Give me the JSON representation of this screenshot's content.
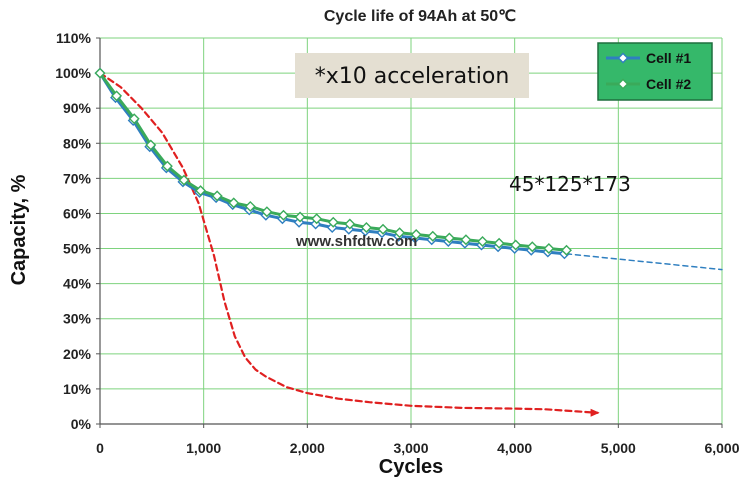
{
  "chart_data": {
    "type": "line",
    "title": "Cycle life of 94Ah at  50℃",
    "xlabel": "Cycles",
    "ylabel": "Capacity, %",
    "xlim": [
      0,
      6000
    ],
    "ylim": [
      0,
      110
    ],
    "x_ticks": [
      0,
      1000,
      2000,
      3000,
      4000,
      5000,
      6000
    ],
    "x_tick_labels": [
      "0",
      "1,000",
      "2,000",
      "3,000",
      "4,000",
      "5,000",
      "6,000"
    ],
    "y_ticks": [
      0,
      10,
      20,
      30,
      40,
      50,
      60,
      70,
      80,
      90,
      100,
      110
    ],
    "y_tick_labels": [
      "0%",
      "10%",
      "20%",
      "30%",
      "40%",
      "50%",
      "60%",
      "70%",
      "80%",
      "90%",
      "100%",
      "110%"
    ],
    "grid": true,
    "legend_position": "top-right",
    "series": [
      {
        "name": "Cell #1",
        "color": "#2f7fc0",
        "marker": "diamond",
        "x": [
          0,
          150,
          320,
          480,
          640,
          800,
          960,
          1120,
          1280,
          1440,
          1600,
          1760,
          1920,
          2080,
          2240,
          2400,
          2560,
          2720,
          2880,
          3040,
          3200,
          3360,
          3520,
          3680,
          3840,
          4000,
          4160,
          4320,
          4480
        ],
        "y": [
          100,
          93,
          86.5,
          79,
          73,
          69,
          66,
          64.5,
          62.5,
          61,
          59.5,
          58.5,
          57.5,
          57,
          56,
          55.5,
          55,
          54.5,
          53.5,
          53,
          52.5,
          52,
          51.5,
          51,
          50.5,
          50,
          49.5,
          49,
          48.5
        ]
      },
      {
        "name": "Cell #2",
        "color": "#3aaa5a",
        "marker": "diamond",
        "x": [
          0,
          160,
          330,
          490,
          650,
          810,
          970,
          1130,
          1290,
          1450,
          1610,
          1770,
          1930,
          2090,
          2250,
          2410,
          2570,
          2730,
          2890,
          3050,
          3210,
          3370,
          3530,
          3690,
          3850,
          4010,
          4170,
          4330,
          4500
        ],
        "y": [
          100,
          93.5,
          87,
          79.5,
          73.5,
          69.5,
          66.5,
          65,
          63,
          62,
          60.5,
          59.5,
          59,
          58.5,
          57.5,
          57,
          56,
          55.5,
          54.5,
          54,
          53.5,
          53,
          52.5,
          52,
          51.5,
          51,
          50.5,
          50,
          49.5
        ]
      },
      {
        "x": [
          0,
          200,
          400,
          600,
          800,
          950,
          1100,
          1200,
          1300,
          1400,
          1500,
          1600,
          1800,
          2000,
          2300,
          2600,
          3000,
          3500,
          4000,
          4300,
          4600,
          4800
        ],
        "y": [
          100,
          96,
          90,
          83,
          73,
          63,
          48,
          35,
          25,
          19,
          15.5,
          13.5,
          10.5,
          8.8,
          7.2,
          6.2,
          5.2,
          4.6,
          4.4,
          4.2,
          3.6,
          3.2
        ],
        "color": "#e02020",
        "style": "dashed"
      },
      {
        "x": [
          4500,
          5000,
          5500,
          6000
        ],
        "y": [
          48.5,
          47.0,
          45.5,
          44.0
        ],
        "color": "#2f7fc0",
        "style": "dashed"
      }
    ],
    "annotations": [
      "*x10 acceleration",
      "45*125*173",
      "www.shfdtw.com"
    ]
  },
  "colors": {
    "grid": "#7ed37e",
    "note_box": "#e4dfd2",
    "legend_bg": "#35b86a",
    "legend_border": "#1f6f3e"
  }
}
